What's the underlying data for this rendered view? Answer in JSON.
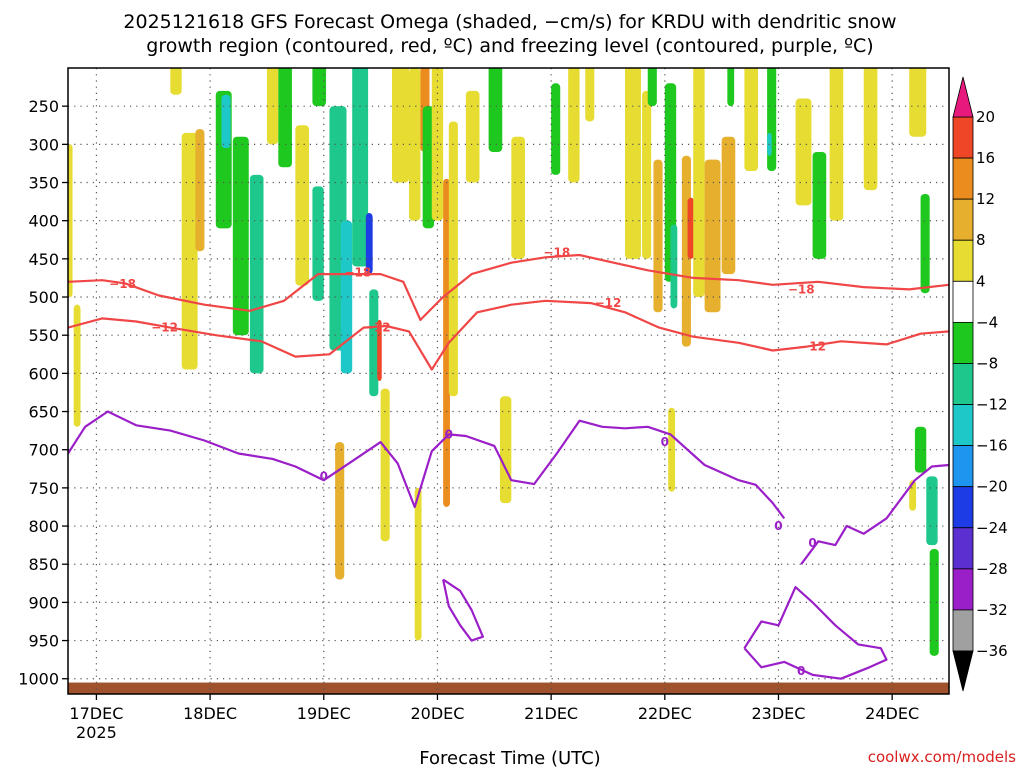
{
  "chart_data": {
    "type": "heatmap",
    "title_lines": [
      "2025121618 GFS Forecast Omega (shaded, −cm/s) for KRDU with dendritic snow",
      "growth region (contoured, red, ºC) and freezing level (contoured, purple, ºC)"
    ],
    "xlabel": "Forecast Time (UTC)",
    "credit": "coolwx.com/models",
    "x_range_days": [
      0,
      7.75
    ],
    "x_ticks": [
      {
        "day": 0.25,
        "label": "17DEC",
        "sub": "2025"
      },
      {
        "day": 1.25,
        "label": "18DEC"
      },
      {
        "day": 2.25,
        "label": "19DEC"
      },
      {
        "day": 3.25,
        "label": "20DEC"
      },
      {
        "day": 4.25,
        "label": "21DEC"
      },
      {
        "day": 5.25,
        "label": "22DEC"
      },
      {
        "day": 6.25,
        "label": "23DEC"
      },
      {
        "day": 7.25,
        "label": "24DEC"
      }
    ],
    "y_range_hpa": [
      200,
      1020
    ],
    "y_ticks": [
      250,
      300,
      350,
      400,
      450,
      500,
      550,
      600,
      650,
      700,
      750,
      800,
      850,
      900,
      950,
      1000
    ],
    "ground_hpa": 1005,
    "colorbar": {
      "boundaries": [
        -36,
        -32,
        -28,
        -24,
        -20,
        -16,
        -12,
        -8,
        -4,
        4,
        8,
        12,
        16,
        20
      ],
      "tick_labels": [
        "20",
        "16",
        "12",
        "8",
        "4",
        "−4",
        "−8",
        "−12",
        "−16",
        "−20",
        "−24",
        "−28",
        "−32",
        "−36"
      ],
      "colors": [
        "#a0a0a0",
        "#9b1fc9",
        "#5b2fd0",
        "#1e3ce6",
        "#1e96f0",
        "#1ec8c8",
        "#1ec88c",
        "#1ec81e",
        "#ffffff",
        "#e6dc32",
        "#e6af2d",
        "#eb8c1e",
        "#f04628"
      ],
      "under_color": "#000000",
      "over_color": "#e8197d"
    },
    "omega_cells": [
      {
        "day": 0.0,
        "dt": 0.04,
        "p": 400,
        "dp": 200,
        "v": 5
      },
      {
        "day": 0.05,
        "dt": 0.06,
        "p": 590,
        "dp": 160,
        "v": 5
      },
      {
        "day": 0.9,
        "dt": 0.1,
        "p": 190,
        "dp": 90,
        "v": 5
      },
      {
        "day": 1.0,
        "dt": 0.14,
        "p": 440,
        "dp": 310,
        "v": 6
      },
      {
        "day": 1.12,
        "dt": 0.08,
        "p": 360,
        "dp": 160,
        "v": 10
      },
      {
        "day": 1.3,
        "dt": 0.14,
        "p": 320,
        "dp": 180,
        "v": -6
      },
      {
        "day": 1.35,
        "dt": 0.08,
        "p": 270,
        "dp": 70,
        "v": -14
      },
      {
        "day": 1.45,
        "dt": 0.14,
        "p": 420,
        "dp": 260,
        "v": -7
      },
      {
        "day": 1.6,
        "dt": 0.12,
        "p": 470,
        "dp": 260,
        "v": -10
      },
      {
        "day": 1.75,
        "dt": 0.1,
        "p": 230,
        "dp": 140,
        "v": 5
      },
      {
        "day": 1.85,
        "dt": 0.12,
        "p": 250,
        "dp": 160,
        "v": -7
      },
      {
        "day": 2.0,
        "dt": 0.12,
        "p": 380,
        "dp": 210,
        "v": 5
      },
      {
        "day": 2.15,
        "dt": 0.12,
        "p": 200,
        "dp": 100,
        "v": -6
      },
      {
        "day": 2.15,
        "dt": 0.1,
        "p": 430,
        "dp": 150,
        "v": -9
      },
      {
        "day": 2.3,
        "dt": 0.15,
        "p": 410,
        "dp": 320,
        "v": -12
      },
      {
        "day": 2.4,
        "dt": 0.1,
        "p": 500,
        "dp": 200,
        "v": -16
      },
      {
        "day": 2.5,
        "dt": 0.14,
        "p": 300,
        "dp": 320,
        "v": -10
      },
      {
        "day": 2.62,
        "dt": 0.06,
        "p": 430,
        "dp": 80,
        "v": -24
      },
      {
        "day": 2.65,
        "dt": 0.08,
        "p": 560,
        "dp": 140,
        "v": -12
      },
      {
        "day": 2.72,
        "dt": 0.04,
        "p": 570,
        "dp": 80,
        "v": 16
      },
      {
        "day": 2.75,
        "dt": 0.08,
        "p": 720,
        "dp": 200,
        "v": 5
      },
      {
        "day": 2.35,
        "dt": 0.08,
        "p": 780,
        "dp": 180,
        "v": 8
      },
      {
        "day": 2.85,
        "dt": 0.15,
        "p": 250,
        "dp": 200,
        "v": 5
      },
      {
        "day": 3.0,
        "dt": 0.1,
        "p": 300,
        "dp": 200,
        "v": 6
      },
      {
        "day": 3.05,
        "dt": 0.06,
        "p": 850,
        "dp": 200,
        "v": 7
      },
      {
        "day": 3.1,
        "dt": 0.08,
        "p": 250,
        "dp": 120,
        "v": 12
      },
      {
        "day": 3.12,
        "dt": 0.1,
        "p": 330,
        "dp": 160,
        "v": -8
      },
      {
        "day": 3.2,
        "dt": 0.1,
        "p": 250,
        "dp": 300,
        "v": 6
      },
      {
        "day": 3.3,
        "dt": 0.06,
        "p": 560,
        "dp": 430,
        "v": 12
      },
      {
        "day": 3.35,
        "dt": 0.08,
        "p": 450,
        "dp": 360,
        "v": 6
      },
      {
        "day": 3.5,
        "dt": 0.12,
        "p": 290,
        "dp": 120,
        "v": 5
      },
      {
        "day": 3.7,
        "dt": 0.12,
        "p": 240,
        "dp": 140,
        "v": -8
      },
      {
        "day": 3.9,
        "dt": 0.12,
        "p": 370,
        "dp": 160,
        "v": 5
      },
      {
        "day": 3.8,
        "dt": 0.1,
        "p": 700,
        "dp": 140,
        "v": 5
      },
      {
        "day": 4.25,
        "dt": 0.08,
        "p": 280,
        "dp": 120,
        "v": -8
      },
      {
        "day": 4.4,
        "dt": 0.1,
        "p": 250,
        "dp": 200,
        "v": 5
      },
      {
        "day": 4.55,
        "dt": 0.08,
        "p": 230,
        "dp": 80,
        "v": 5
      },
      {
        "day": 4.9,
        "dt": 0.14,
        "p": 300,
        "dp": 300,
        "v": 5
      },
      {
        "day": 4.9,
        "dt": 0.08,
        "p": 360,
        "dp": 100,
        "v": 7
      },
      {
        "day": 5.05,
        "dt": 0.08,
        "p": 340,
        "dp": 220,
        "v": 5
      },
      {
        "day": 5.1,
        "dt": 0.08,
        "p": 210,
        "dp": 80,
        "v": -8
      },
      {
        "day": 5.15,
        "dt": 0.08,
        "p": 420,
        "dp": 200,
        "v": 9
      },
      {
        "day": 5.25,
        "dt": 0.1,
        "p": 350,
        "dp": 260,
        "v": -8
      },
      {
        "day": 5.3,
        "dt": 0.06,
        "p": 460,
        "dp": 110,
        "v": -12
      },
      {
        "day": 5.28,
        "dt": 0.06,
        "p": 700,
        "dp": 110,
        "v": 5
      },
      {
        "day": 5.4,
        "dt": 0.08,
        "p": 440,
        "dp": 250,
        "v": 10
      },
      {
        "day": 5.45,
        "dt": 0.06,
        "p": 410,
        "dp": 80,
        "v": 16
      },
      {
        "day": 5.5,
        "dt": 0.1,
        "p": 340,
        "dp": 320,
        "v": 6
      },
      {
        "day": 5.6,
        "dt": 0.14,
        "p": 420,
        "dp": 200,
        "v": 8
      },
      {
        "day": 5.75,
        "dt": 0.12,
        "p": 380,
        "dp": 180,
        "v": 9
      },
      {
        "day": 5.8,
        "dt": 0.06,
        "p": 210,
        "dp": 80,
        "v": -8
      },
      {
        "day": 5.95,
        "dt": 0.12,
        "p": 250,
        "dp": 170,
        "v": 5
      },
      {
        "day": 6.15,
        "dt": 0.08,
        "p": 260,
        "dp": 150,
        "v": -8
      },
      {
        "day": 6.15,
        "dt": 0.04,
        "p": 300,
        "dp": 30,
        "v": -14
      },
      {
        "day": 6.4,
        "dt": 0.14,
        "p": 310,
        "dp": 140,
        "v": 5
      },
      {
        "day": 6.55,
        "dt": 0.12,
        "p": 380,
        "dp": 140,
        "v": -8
      },
      {
        "day": 6.7,
        "dt": 0.12,
        "p": 280,
        "dp": 240,
        "v": 5
      },
      {
        "day": 7.0,
        "dt": 0.12,
        "p": 260,
        "dp": 200,
        "v": 5
      },
      {
        "day": 7.4,
        "dt": 0.15,
        "p": 230,
        "dp": 120,
        "v": 5
      },
      {
        "day": 7.5,
        "dt": 0.08,
        "p": 430,
        "dp": 130,
        "v": -8
      },
      {
        "day": 7.45,
        "dt": 0.1,
        "p": 700,
        "dp": 60,
        "v": -8
      },
      {
        "day": 7.55,
        "dt": 0.1,
        "p": 780,
        "dp": 90,
        "v": -10
      },
      {
        "day": 7.58,
        "dt": 0.08,
        "p": 900,
        "dp": 140,
        "v": -8
      },
      {
        "day": 7.4,
        "dt": 0.06,
        "p": 760,
        "dp": 40,
        "v": 5
      }
    ],
    "contours": [
      {
        "label": "−18",
        "color": "#f04646",
        "x": [
          0.0,
          0.3,
          0.5,
          0.8,
          1.2,
          1.6,
          1.9,
          2.2,
          2.5,
          2.75,
          2.95,
          3.1,
          3.3,
          3.55,
          3.9,
          4.2,
          4.5,
          4.8,
          5.1,
          5.5,
          5.9,
          6.2,
          6.6,
          7.0,
          7.4,
          7.75
        ],
        "p": [
          480,
          478,
          482,
          498,
          510,
          518,
          505,
          470,
          470,
          470,
          480,
          530,
          500,
          470,
          455,
          448,
          445,
          455,
          465,
          475,
          478,
          484,
          480,
          487,
          490,
          484
        ],
        "label_pos": [
          {
            "day": 0.48,
            "p": 483
          },
          {
            "day": 2.55,
            "p": 468
          },
          {
            "day": 4.3,
            "p": 442
          },
          {
            "day": 6.45,
            "p": 490
          }
        ]
      },
      {
        "label": "−12",
        "color": "#f04646",
        "x": [
          0.0,
          0.3,
          0.6,
          0.9,
          1.3,
          1.7,
          2.0,
          2.3,
          2.6,
          2.8,
          3.0,
          3.2,
          3.35,
          3.6,
          3.9,
          4.2,
          4.6,
          4.9,
          5.2,
          5.5,
          5.9,
          6.2,
          6.5,
          6.8,
          7.2,
          7.5,
          7.75
        ],
        "p": [
          540,
          528,
          532,
          540,
          550,
          558,
          578,
          575,
          540,
          538,
          545,
          595,
          560,
          520,
          510,
          505,
          508,
          520,
          540,
          552,
          560,
          570,
          565,
          558,
          562,
          548,
          545
        ],
        "label_pos": [
          {
            "day": 0.85,
            "p": 540
          },
          {
            "day": 2.72,
            "p": 540
          },
          {
            "day": 4.75,
            "p": 508
          },
          {
            "day": 6.55,
            "p": 565
          }
        ]
      },
      {
        "label": "0",
        "color": "#9b1fc9",
        "x": [
          0.0,
          0.15,
          0.35,
          0.6,
          0.9,
          1.2,
          1.5,
          1.8,
          2.0,
          2.25,
          2.5,
          2.75,
          2.9,
          3.05,
          3.2,
          3.35,
          3.5,
          3.75,
          3.9,
          4.1,
          4.3,
          4.5,
          4.7,
          4.9,
          5.1,
          5.3,
          5.6,
          5.9,
          6.05,
          6.2,
          6.3
        ],
        "p": [
          705,
          670,
          650,
          668,
          675,
          688,
          705,
          712,
          722,
          740,
          715,
          690,
          718,
          775,
          702,
          680,
          682,
          695,
          740,
          745,
          705,
          662,
          670,
          672,
          670,
          680,
          720,
          740,
          746,
          770,
          790
        ],
        "label_pos": [
          {
            "day": 2.25,
            "p": 735
          },
          {
            "day": 3.35,
            "p": 680
          },
          {
            "day": 5.25,
            "p": 690
          },
          {
            "day": 6.25,
            "p": 800
          }
        ]
      },
      {
        "label": "0",
        "color": "#9b1fc9",
        "x": [
          6.45,
          6.6,
          6.75,
          6.85,
          7.0,
          7.2,
          7.45,
          7.6,
          7.75
        ],
        "p": [
          850,
          820,
          825,
          800,
          810,
          790,
          740,
          722,
          720
        ],
        "label_pos": [
          {
            "day": 6.55,
            "p": 822
          }
        ]
      },
      {
        "label": "0",
        "color": "#9b1fc9",
        "x": [
          5.95,
          6.1,
          6.25,
          6.4,
          6.55,
          6.75,
          6.95,
          7.15,
          7.2,
          7.05,
          6.8,
          6.55,
          6.3,
          6.1,
          5.95
        ],
        "p": [
          960,
          925,
          930,
          880,
          900,
          930,
          955,
          960,
          975,
          985,
          1000,
          995,
          978,
          985,
          960
        ],
        "label_pos": [
          {
            "day": 6.45,
            "p": 990
          }
        ]
      },
      {
        "label": "0",
        "color": "#9b1fc9",
        "x": [
          3.3,
          3.35,
          3.45,
          3.55,
          3.65,
          3.55,
          3.45,
          3.35,
          3.3
        ],
        "p": [
          870,
          905,
          930,
          950,
          945,
          910,
          885,
          875,
          870
        ],
        "label_pos": []
      }
    ]
  }
}
